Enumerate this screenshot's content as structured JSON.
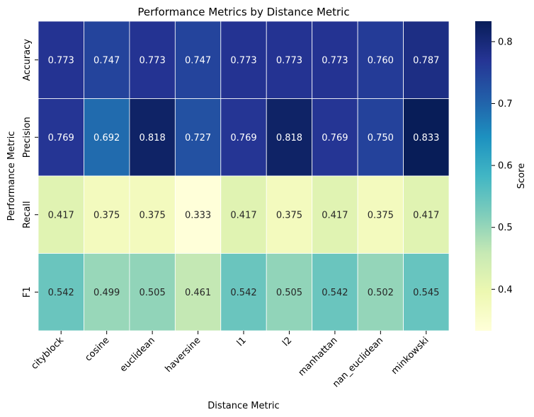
{
  "chart_data": {
    "type": "heatmap",
    "title": "Performance Metrics by Distance Metric",
    "xlabel": "Distance Metric",
    "ylabel": "Performance Metric",
    "x_categories": [
      "cityblock",
      "cosine",
      "euclidean",
      "haversine",
      "l1",
      "l2",
      "manhattan",
      "nan_euclidean",
      "minkowski"
    ],
    "y_categories": [
      "Accuracy",
      "Precision",
      "Recall",
      "F1"
    ],
    "values": [
      [
        0.773,
        0.747,
        0.773,
        0.747,
        0.773,
        0.773,
        0.773,
        0.76,
        0.787
      ],
      [
        0.769,
        0.692,
        0.818,
        0.727,
        0.769,
        0.818,
        0.769,
        0.75,
        0.833
      ],
      [
        0.417,
        0.375,
        0.375,
        0.333,
        0.417,
        0.375,
        0.417,
        0.375,
        0.417
      ],
      [
        0.542,
        0.499,
        0.505,
        0.461,
        0.542,
        0.505,
        0.542,
        0.502,
        0.545
      ]
    ],
    "value_labels": [
      [
        "0.773",
        "0.747",
        "0.773",
        "0.747",
        "0.773",
        "0.773",
        "0.773",
        "0.760",
        "0.787"
      ],
      [
        "0.769",
        "0.692",
        "0.818",
        "0.727",
        "0.769",
        "0.818",
        "0.769",
        "0.750",
        "0.833"
      ],
      [
        "0.417",
        "0.375",
        "0.375",
        "0.333",
        "0.417",
        "0.375",
        "0.417",
        "0.375",
        "0.417"
      ],
      [
        "0.542",
        "0.499",
        "0.505",
        "0.461",
        "0.542",
        "0.505",
        "0.542",
        "0.502",
        "0.545"
      ]
    ],
    "colormap": "YlGnBu",
    "color_range": [
      0.333,
      0.833
    ],
    "colorbar": {
      "label": "Score",
      "ticks": [
        0.4,
        0.5,
        0.6,
        0.7,
        0.8
      ],
      "tick_labels": [
        "0.4",
        "0.5",
        "0.6",
        "0.7",
        "0.8"
      ]
    },
    "grid": false
  }
}
